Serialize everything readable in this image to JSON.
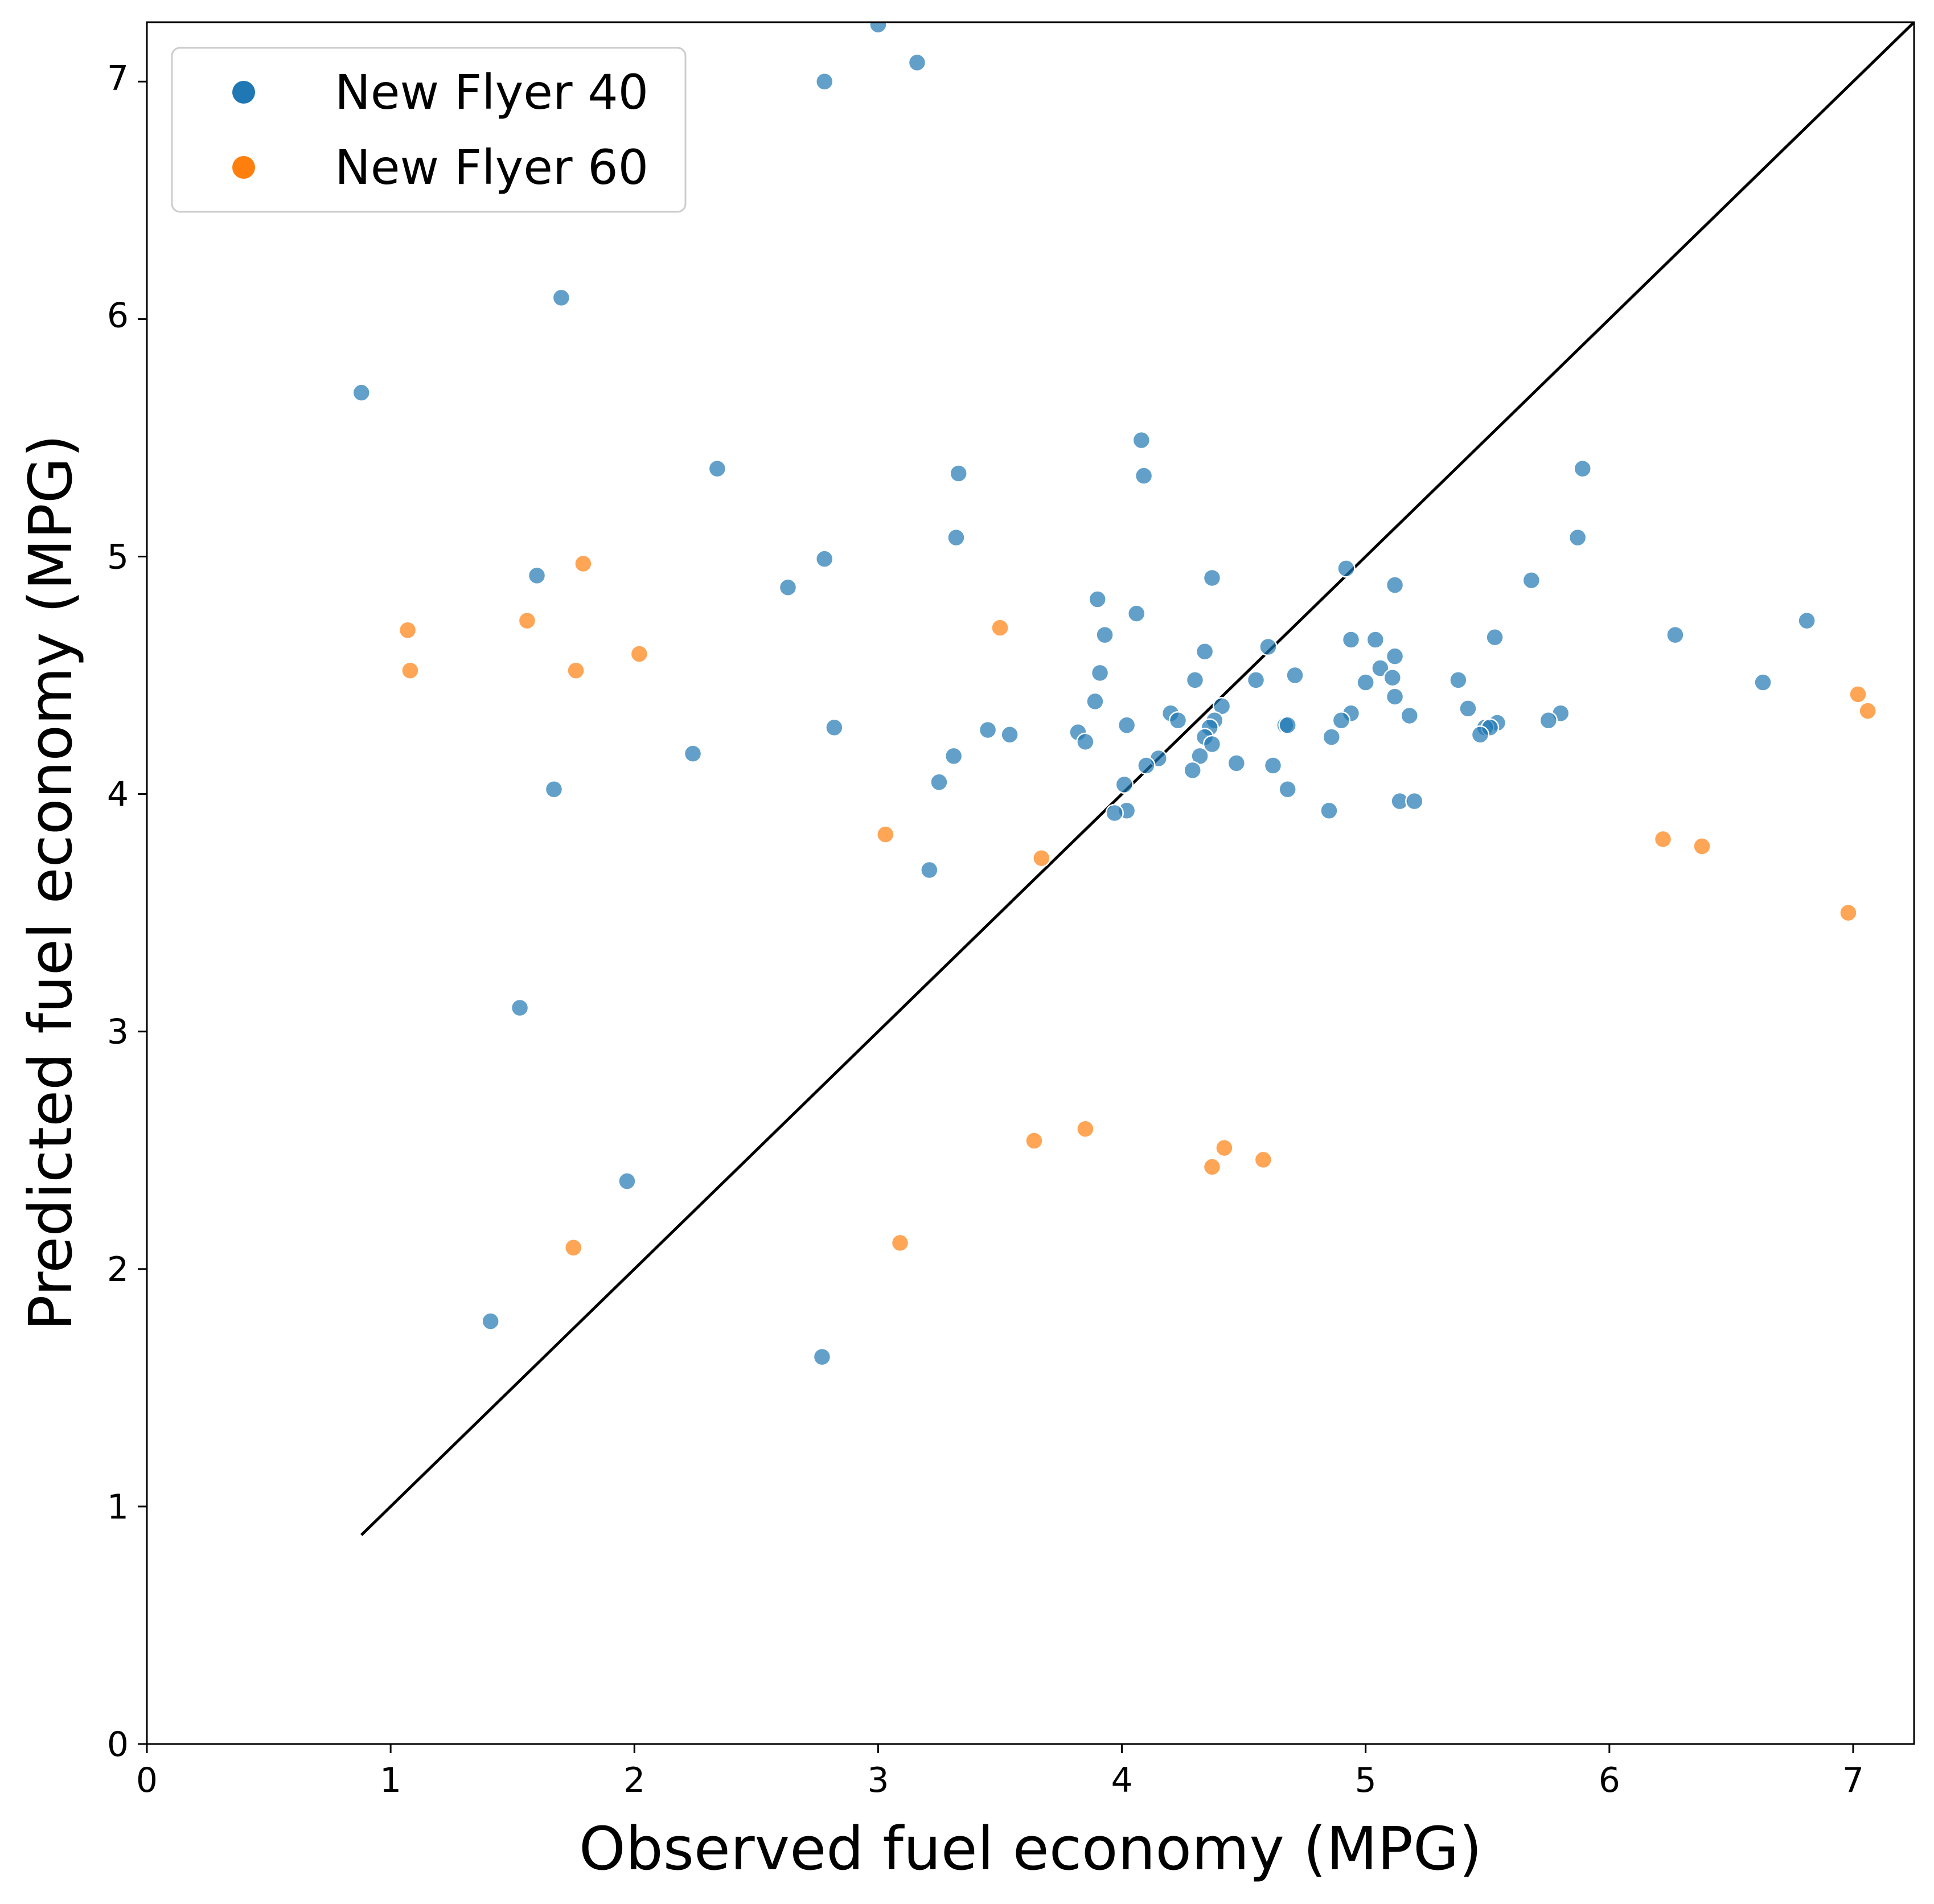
{
  "chart_data": {
    "type": "scatter",
    "title": "",
    "xlabel": "Observed fuel economy (MPG)",
    "ylabel": "Predicted fuel economy (MPG)",
    "xlim": [
      0,
      7.25
    ],
    "ylim": [
      0,
      7.25
    ],
    "xticks": [
      "0",
      "1",
      "2",
      "3",
      "4",
      "5",
      "6",
      "7"
    ],
    "yticks": [
      "0",
      "1",
      "2",
      "3",
      "4",
      "5",
      "6",
      "7"
    ],
    "grid": false,
    "legend_position": "top-left",
    "reference_line": {
      "x": [
        0.88,
        7.25
      ],
      "y": [
        0.88,
        7.25
      ],
      "color": "#000000"
    },
    "series": [
      {
        "name": "New Flyer 40",
        "color": "#1f77b4",
        "points": [
          [
            3.0,
            7.24
          ],
          [
            3.16,
            7.08
          ],
          [
            2.78,
            7.0
          ],
          [
            1.7,
            6.09
          ],
          [
            0.88,
            5.69
          ],
          [
            4.08,
            5.49
          ],
          [
            2.34,
            5.37
          ],
          [
            5.89,
            5.37
          ],
          [
            3.33,
            5.35
          ],
          [
            4.09,
            5.34
          ],
          [
            3.32,
            5.08
          ],
          [
            5.87,
            5.08
          ],
          [
            2.78,
            4.99
          ],
          [
            4.92,
            4.95
          ],
          [
            1.6,
            4.92
          ],
          [
            4.37,
            4.91
          ],
          [
            5.68,
            4.9
          ],
          [
            5.12,
            4.88
          ],
          [
            2.63,
            4.87
          ],
          [
            3.9,
            4.82
          ],
          [
            4.06,
            4.76
          ],
          [
            6.81,
            4.73
          ],
          [
            6.27,
            4.67
          ],
          [
            3.93,
            4.67
          ],
          [
            5.53,
            4.66
          ],
          [
            4.94,
            4.65
          ],
          [
            5.04,
            4.65
          ],
          [
            4.6,
            4.62
          ],
          [
            4.34,
            4.6
          ],
          [
            5.12,
            4.58
          ],
          [
            5.06,
            4.53
          ],
          [
            3.91,
            4.51
          ],
          [
            4.71,
            4.5
          ],
          [
            5.11,
            4.49
          ],
          [
            4.3,
            4.48
          ],
          [
            4.55,
            4.48
          ],
          [
            5.38,
            4.48
          ],
          [
            5.0,
            4.47
          ],
          [
            6.63,
            4.47
          ],
          [
            5.12,
            4.41
          ],
          [
            3.89,
            4.39
          ],
          [
            4.41,
            4.37
          ],
          [
            5.42,
            4.36
          ],
          [
            4.2,
            4.34
          ],
          [
            4.94,
            4.34
          ],
          [
            5.8,
            4.34
          ],
          [
            5.18,
            4.33
          ],
          [
            4.23,
            4.31
          ],
          [
            4.38,
            4.31
          ],
          [
            4.9,
            4.31
          ],
          [
            5.75,
            4.31
          ],
          [
            5.54,
            4.3
          ],
          [
            4.02,
            4.29
          ],
          [
            4.67,
            4.29
          ],
          [
            4.68,
            4.29
          ],
          [
            5.49,
            4.28
          ],
          [
            2.82,
            4.28
          ],
          [
            4.36,
            4.28
          ],
          [
            5.51,
            4.28
          ],
          [
            3.45,
            4.27
          ],
          [
            3.82,
            4.26
          ],
          [
            3.54,
            4.25
          ],
          [
            5.47,
            4.25
          ],
          [
            4.86,
            4.24
          ],
          [
            4.34,
            4.24
          ],
          [
            3.85,
            4.22
          ],
          [
            4.37,
            4.21
          ],
          [
            2.24,
            4.17
          ],
          [
            4.32,
            4.16
          ],
          [
            3.31,
            4.16
          ],
          [
            4.15,
            4.15
          ],
          [
            4.47,
            4.13
          ],
          [
            4.1,
            4.12
          ],
          [
            4.62,
            4.12
          ],
          [
            4.29,
            4.1
          ],
          [
            3.25,
            4.05
          ],
          [
            4.01,
            4.04
          ],
          [
            1.67,
            4.02
          ],
          [
            4.68,
            4.02
          ],
          [
            5.14,
            3.97
          ],
          [
            5.2,
            3.97
          ],
          [
            4.02,
            3.93
          ],
          [
            3.97,
            3.92
          ],
          [
            4.85,
            3.93
          ],
          [
            3.21,
            3.68
          ],
          [
            1.53,
            3.1
          ],
          [
            1.97,
            2.37
          ],
          [
            1.41,
            1.78
          ],
          [
            2.77,
            1.63
          ]
        ]
      },
      {
        "name": "New Flyer 60",
        "color": "#ff7f0e",
        "points": [
          [
            1.79,
            4.97
          ],
          [
            1.56,
            4.73
          ],
          [
            3.5,
            4.7
          ],
          [
            1.07,
            4.69
          ],
          [
            2.02,
            4.59
          ],
          [
            1.08,
            4.52
          ],
          [
            1.76,
            4.52
          ],
          [
            7.02,
            4.42
          ],
          [
            7.06,
            4.35
          ],
          [
            3.03,
            3.83
          ],
          [
            6.22,
            3.81
          ],
          [
            6.38,
            3.78
          ],
          [
            3.67,
            3.73
          ],
          [
            6.98,
            3.5
          ],
          [
            3.85,
            2.59
          ],
          [
            3.64,
            2.54
          ],
          [
            4.42,
            2.51
          ],
          [
            4.58,
            2.46
          ],
          [
            4.37,
            2.43
          ],
          [
            3.09,
            2.11
          ],
          [
            1.75,
            2.09
          ]
        ]
      }
    ]
  }
}
